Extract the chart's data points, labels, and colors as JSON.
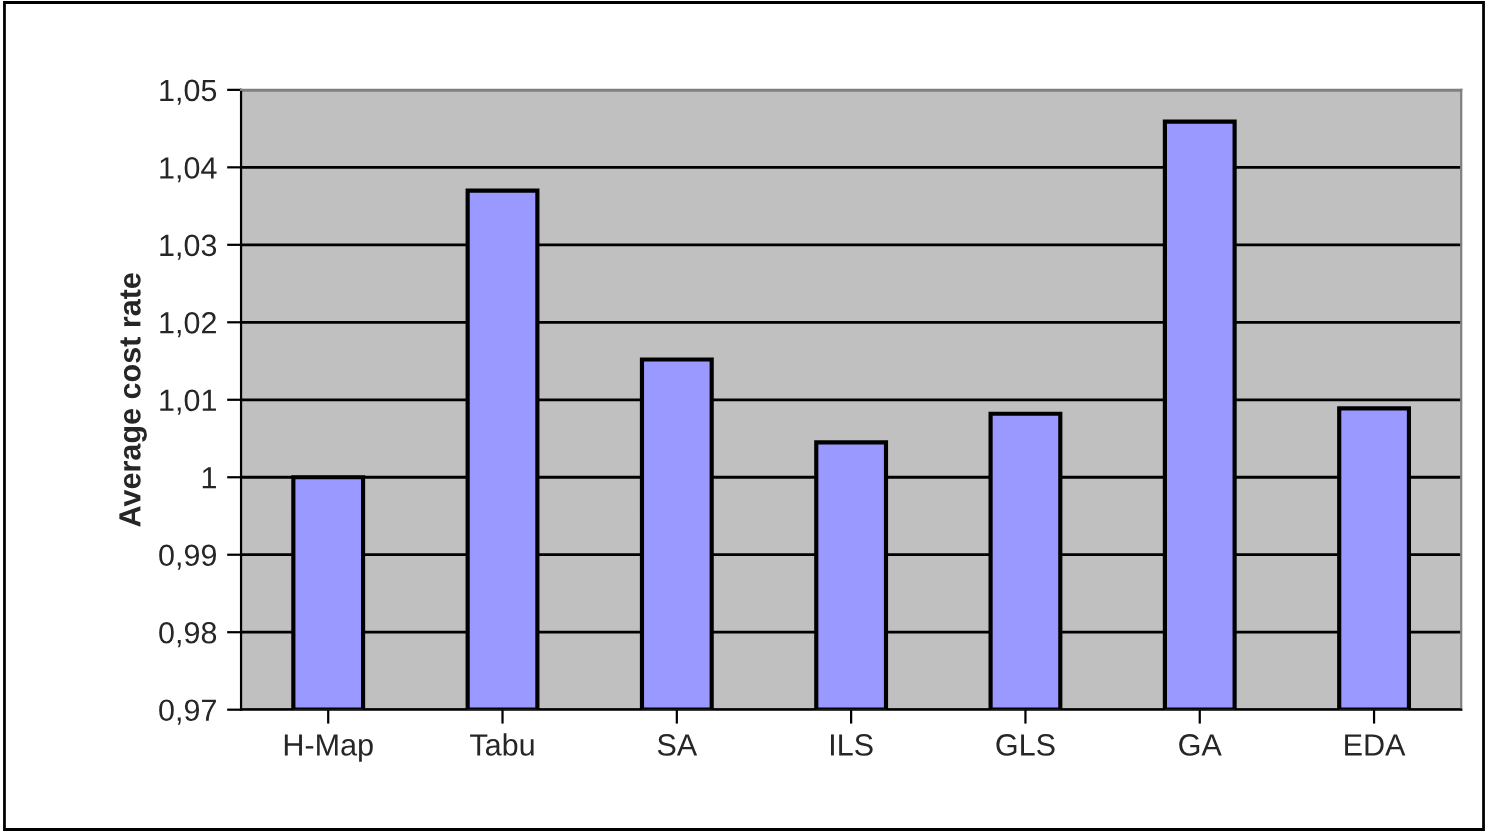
{
  "chart_data": {
    "type": "bar",
    "ylabel": "Average cost rate",
    "categories": [
      "H-Map",
      "Tabu",
      "SA",
      "ILS",
      "GLS",
      "GA",
      "EDA"
    ],
    "values": [
      1.0,
      1.037,
      1.0152,
      1.0045,
      1.0082,
      1.0459,
      1.0089
    ],
    "color": "#9999ff",
    "ylim": [
      0.97,
      1.05
    ],
    "yticks": [
      {
        "value": 0.97,
        "label": "0,97"
      },
      {
        "value": 0.98,
        "label": "0,98"
      },
      {
        "value": 0.99,
        "label": "0,99"
      },
      {
        "value": 1.0,
        "label": "1"
      },
      {
        "value": 1.01,
        "label": "1,01"
      },
      {
        "value": 1.02,
        "label": "1,02"
      },
      {
        "value": 1.03,
        "label": "1,03"
      },
      {
        "value": 1.04,
        "label": "1,04"
      },
      {
        "value": 1.05,
        "label": "1,05"
      }
    ],
    "grid": "y",
    "legend": false
  }
}
